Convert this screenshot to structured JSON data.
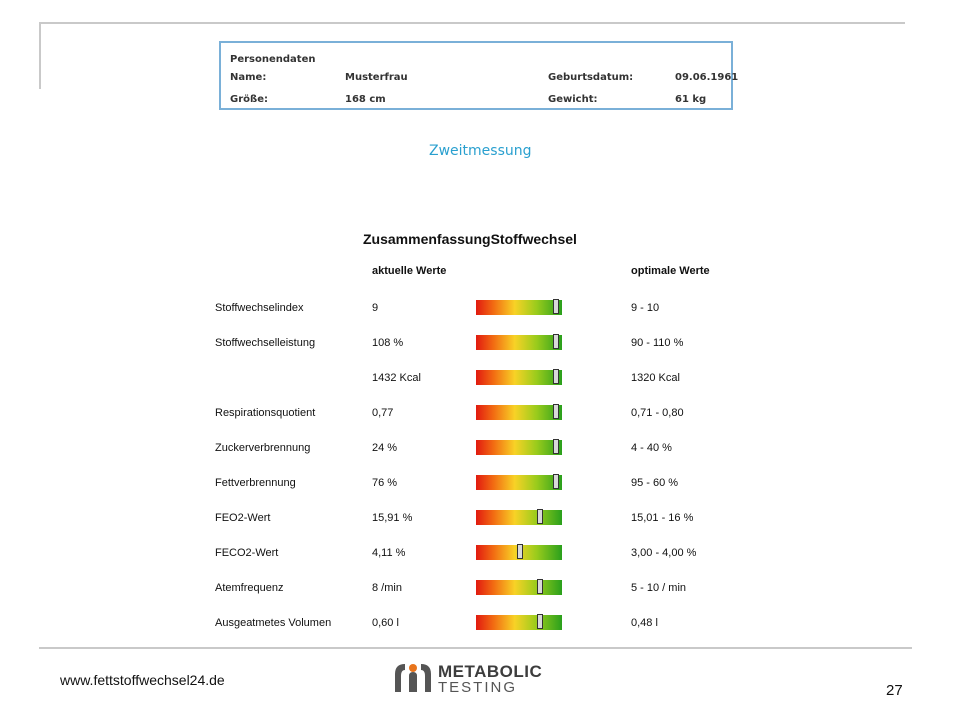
{
  "person": {
    "title": "Personendaten",
    "name_label": "Name:",
    "name_value": "Musterfrau",
    "birth_label": "Geburtsdatum:",
    "birth_value": "09.06.1961",
    "height_label": "Größe:",
    "height_value": "168 cm",
    "weight_label": "Gewicht:",
    "weight_value": "61 kg"
  },
  "subtitle": "Zweitmessung",
  "summary": {
    "title": "ZusammenfassungStoffwechsel",
    "header_actual": "aktuelle Werte",
    "header_optimal": "optimale Werte",
    "rows": [
      {
        "label": "Stoffwechselindex",
        "value": "9",
        "optimal": "9 - 10",
        "level": 0.96
      },
      {
        "label": "Stoffwechselleistung",
        "value": "108 %",
        "optimal": "90 - 110 %",
        "level": 0.96
      },
      {
        "label": "",
        "value": "1432 Kcal",
        "optimal": "1320 Kcal",
        "level": 0.96
      },
      {
        "label": "Respirationsquotient",
        "value": "0,77",
        "optimal": "0,71 - 0,80",
        "level": 0.96
      },
      {
        "label": "Zuckerverbrennung",
        "value": "24 %",
        "optimal": "4 - 40 %",
        "level": 0.96
      },
      {
        "label": "Fettverbrennung",
        "value": "76 %",
        "optimal": "95 - 60 %",
        "level": 0.96
      },
      {
        "label": "FEO2-Wert",
        "value": "15,91 %",
        "optimal": "15,01 - 16 %",
        "level": 0.76
      },
      {
        "label": "FECO2-Wert",
        "value": "4,11 %",
        "optimal": "3,00 - 4,00 %",
        "level": 0.51
      },
      {
        "label": "Atemfrequenz",
        "value": "8 /min",
        "optimal": "5 - 10 / min",
        "level": 0.76
      },
      {
        "label": "Ausgeatmetes Volumen",
        "value": "0,60 l",
        "optimal": "0,48 l",
        "level": 0.76
      }
    ]
  },
  "footer": {
    "url": "www.fettstoffwechsel24.de",
    "page_number": "27",
    "logo_line1": "METABOLIC",
    "logo_line2": "TESTING"
  }
}
